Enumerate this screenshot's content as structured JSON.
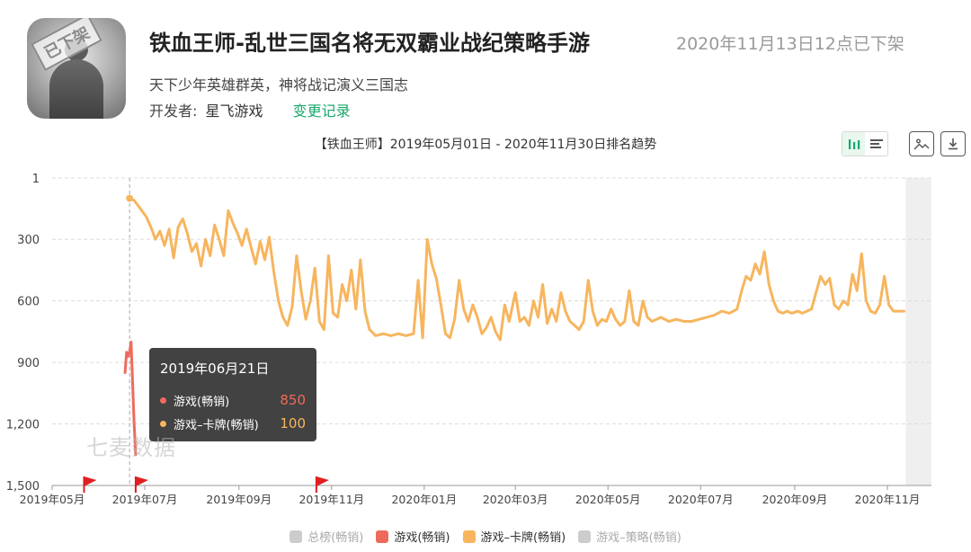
{
  "app": {
    "title": "铁血王师-乱世三国名将无双霸业战纪策略手游",
    "status": "2020年11月13日12点已下架",
    "stamp": "已下架",
    "subtitle": "天下少年英雄群英，神将战记演义三国志",
    "developer_label": "开发者:",
    "developer": "星飞游戏",
    "changelog": "变更记录"
  },
  "toolbar": {
    "icons": [
      "bar-chart-icon",
      "list-icon",
      "image-icon",
      "download-icon"
    ],
    "accent": "#19a86b"
  },
  "watermark": "七麦数据",
  "tooltip": {
    "date": "2019年06月21日",
    "rows": [
      {
        "name": "游戏(畅销)",
        "value": "850",
        "color": "#ee6b5c"
      },
      {
        "name": "游戏–卡牌(畅销)",
        "value": "100",
        "color": "#f7b55e"
      }
    ]
  },
  "chart_data": {
    "type": "line",
    "title": "【铁血王师】2019年05月01日 - 2020年11月30日排名趋势",
    "y_ticks": [
      "1",
      "300",
      "600",
      "900",
      "1,200",
      "1,500"
    ],
    "y_tick_values": [
      1,
      300,
      600,
      900,
      1200,
      1500
    ],
    "ylim": [
      1,
      1500
    ],
    "y_inverted": true,
    "x_ticks": [
      "2019年05月",
      "2019年07月",
      "2019年09月",
      "2019年11月",
      "2020年01月",
      "2020年03月",
      "2020年05月",
      "2020年07月",
      "2020年09月",
      "2020年11月"
    ],
    "x_tick_dates": [
      "2019-05-01",
      "2019-07-01",
      "2019-09-01",
      "2019-11-01",
      "2020-01-01",
      "2020-03-01",
      "2020-05-01",
      "2020-07-01",
      "2020-09-01",
      "2020-11-01"
    ],
    "xlim": [
      "2019-05-01",
      "2020-11-30"
    ],
    "grid": true,
    "hover_date": "2019-06-21",
    "shaded_from": "2020-11-13",
    "flag_dates": [
      "2019-05-22",
      "2019-06-25",
      "2019-10-22"
    ],
    "legend": [
      {
        "name": "总榜(畅销)",
        "color": "#cccccc"
      },
      {
        "name": "游戏(畅销)",
        "color": "#ee6b5c"
      },
      {
        "name": "游戏–卡牌(畅销)",
        "color": "#f7b55e"
      },
      {
        "name": "游戏–策略(畅销)",
        "color": "#cccccc"
      }
    ],
    "series": [
      {
        "name": "游戏(畅销)",
        "color": "#ee6b5c",
        "points": [
          [
            "2019-06-18",
            950
          ],
          [
            "2019-06-19",
            850
          ],
          [
            "2019-06-20",
            870
          ],
          [
            "2019-06-21",
            850
          ],
          [
            "2019-06-22",
            800
          ],
          [
            "2019-06-23",
            1000
          ],
          [
            "2019-06-24",
            1200
          ],
          [
            "2019-06-25",
            1350
          ]
        ]
      },
      {
        "name": "游戏–卡牌(畅销)",
        "color": "#f7b55e",
        "points": [
          [
            "2019-06-21",
            100
          ],
          [
            "2019-06-24",
            110
          ],
          [
            "2019-06-28",
            150
          ],
          [
            "2019-07-02",
            190
          ],
          [
            "2019-07-05",
            240
          ],
          [
            "2019-07-08",
            300
          ],
          [
            "2019-07-11",
            260
          ],
          [
            "2019-07-14",
            330
          ],
          [
            "2019-07-17",
            250
          ],
          [
            "2019-07-20",
            390
          ],
          [
            "2019-07-23",
            240
          ],
          [
            "2019-07-26",
            200
          ],
          [
            "2019-07-29",
            270
          ],
          [
            "2019-08-01",
            360
          ],
          [
            "2019-08-04",
            320
          ],
          [
            "2019-08-07",
            430
          ],
          [
            "2019-08-10",
            300
          ],
          [
            "2019-08-13",
            380
          ],
          [
            "2019-08-16",
            230
          ],
          [
            "2019-08-19",
            300
          ],
          [
            "2019-08-22",
            380
          ],
          [
            "2019-08-25",
            160
          ],
          [
            "2019-08-28",
            220
          ],
          [
            "2019-08-31",
            270
          ],
          [
            "2019-09-03",
            330
          ],
          [
            "2019-09-06",
            250
          ],
          [
            "2019-09-09",
            340
          ],
          [
            "2019-09-12",
            420
          ],
          [
            "2019-09-15",
            310
          ],
          [
            "2019-09-18",
            400
          ],
          [
            "2019-09-21",
            290
          ],
          [
            "2019-09-24",
            460
          ],
          [
            "2019-09-27",
            600
          ],
          [
            "2019-09-30",
            680
          ],
          [
            "2019-10-03",
            720
          ],
          [
            "2019-10-06",
            630
          ],
          [
            "2019-10-09",
            380
          ],
          [
            "2019-10-12",
            550
          ],
          [
            "2019-10-15",
            690
          ],
          [
            "2019-10-18",
            600
          ],
          [
            "2019-10-21",
            440
          ],
          [
            "2019-10-24",
            700
          ],
          [
            "2019-10-27",
            740
          ],
          [
            "2019-10-30",
            380
          ],
          [
            "2019-11-02",
            660
          ],
          [
            "2019-11-05",
            680
          ],
          [
            "2019-11-08",
            520
          ],
          [
            "2019-11-11",
            600
          ],
          [
            "2019-11-14",
            450
          ],
          [
            "2019-11-17",
            640
          ],
          [
            "2019-11-20",
            400
          ],
          [
            "2019-11-23",
            650
          ],
          [
            "2019-11-26",
            740
          ],
          [
            "2019-11-30",
            770
          ],
          [
            "2019-12-05",
            760
          ],
          [
            "2019-12-10",
            770
          ],
          [
            "2019-12-15",
            760
          ],
          [
            "2019-12-20",
            770
          ],
          [
            "2019-12-25",
            760
          ],
          [
            "2019-12-28",
            500
          ],
          [
            "2019-12-31",
            780
          ],
          [
            "2020-01-03",
            300
          ],
          [
            "2020-01-06",
            420
          ],
          [
            "2020-01-09",
            490
          ],
          [
            "2020-01-12",
            620
          ],
          [
            "2020-01-15",
            760
          ],
          [
            "2020-01-18",
            780
          ],
          [
            "2020-01-21",
            690
          ],
          [
            "2020-01-24",
            500
          ],
          [
            "2020-01-27",
            640
          ],
          [
            "2020-01-30",
            700
          ],
          [
            "2020-02-02",
            620
          ],
          [
            "2020-02-05",
            680
          ],
          [
            "2020-02-08",
            760
          ],
          [
            "2020-02-11",
            730
          ],
          [
            "2020-02-14",
            680
          ],
          [
            "2020-02-17",
            750
          ],
          [
            "2020-02-20",
            790
          ],
          [
            "2020-02-23",
            620
          ],
          [
            "2020-02-26",
            700
          ],
          [
            "2020-03-01",
            560
          ],
          [
            "2020-03-04",
            700
          ],
          [
            "2020-03-07",
            680
          ],
          [
            "2020-03-10",
            720
          ],
          [
            "2020-03-13",
            600
          ],
          [
            "2020-03-16",
            680
          ],
          [
            "2020-03-19",
            520
          ],
          [
            "2020-03-22",
            710
          ],
          [
            "2020-03-25",
            640
          ],
          [
            "2020-03-28",
            700
          ],
          [
            "2020-03-31",
            560
          ],
          [
            "2020-04-03",
            650
          ],
          [
            "2020-04-06",
            700
          ],
          [
            "2020-04-09",
            720
          ],
          [
            "2020-04-12",
            740
          ],
          [
            "2020-04-15",
            700
          ],
          [
            "2020-04-18",
            500
          ],
          [
            "2020-04-21",
            650
          ],
          [
            "2020-04-24",
            720
          ],
          [
            "2020-04-27",
            690
          ],
          [
            "2020-04-30",
            700
          ],
          [
            "2020-05-03",
            640
          ],
          [
            "2020-05-06",
            690
          ],
          [
            "2020-05-09",
            720
          ],
          [
            "2020-05-12",
            700
          ],
          [
            "2020-05-15",
            550
          ],
          [
            "2020-05-18",
            700
          ],
          [
            "2020-05-21",
            720
          ],
          [
            "2020-05-24",
            600
          ],
          [
            "2020-05-27",
            680
          ],
          [
            "2020-05-30",
            700
          ],
          [
            "2020-06-05",
            680
          ],
          [
            "2020-06-10",
            700
          ],
          [
            "2020-06-15",
            690
          ],
          [
            "2020-06-20",
            700
          ],
          [
            "2020-06-25",
            700
          ],
          [
            "2020-06-30",
            690
          ],
          [
            "2020-07-05",
            680
          ],
          [
            "2020-07-10",
            670
          ],
          [
            "2020-07-15",
            650
          ],
          [
            "2020-07-20",
            660
          ],
          [
            "2020-07-25",
            640
          ],
          [
            "2020-07-28",
            550
          ],
          [
            "2020-07-31",
            480
          ],
          [
            "2020-08-03",
            500
          ],
          [
            "2020-08-06",
            420
          ],
          [
            "2020-08-09",
            470
          ],
          [
            "2020-08-12",
            360
          ],
          [
            "2020-08-15",
            520
          ],
          [
            "2020-08-18",
            600
          ],
          [
            "2020-08-21",
            650
          ],
          [
            "2020-08-24",
            660
          ],
          [
            "2020-08-27",
            650
          ],
          [
            "2020-08-30",
            660
          ],
          [
            "2020-09-03",
            650
          ],
          [
            "2020-09-06",
            660
          ],
          [
            "2020-09-09",
            650
          ],
          [
            "2020-09-12",
            640
          ],
          [
            "2020-09-15",
            560
          ],
          [
            "2020-09-18",
            480
          ],
          [
            "2020-09-21",
            520
          ],
          [
            "2020-09-24",
            490
          ],
          [
            "2020-09-27",
            620
          ],
          [
            "2020-09-30",
            640
          ],
          [
            "2020-10-03",
            600
          ],
          [
            "2020-10-06",
            620
          ],
          [
            "2020-10-09",
            470
          ],
          [
            "2020-10-12",
            550
          ],
          [
            "2020-10-15",
            370
          ],
          [
            "2020-10-18",
            600
          ],
          [
            "2020-10-21",
            650
          ],
          [
            "2020-10-24",
            660
          ],
          [
            "2020-10-27",
            620
          ],
          [
            "2020-10-30",
            480
          ],
          [
            "2020-11-02",
            620
          ],
          [
            "2020-11-05",
            650
          ],
          [
            "2020-11-09",
            650
          ],
          [
            "2020-11-12",
            650
          ]
        ]
      }
    ]
  }
}
